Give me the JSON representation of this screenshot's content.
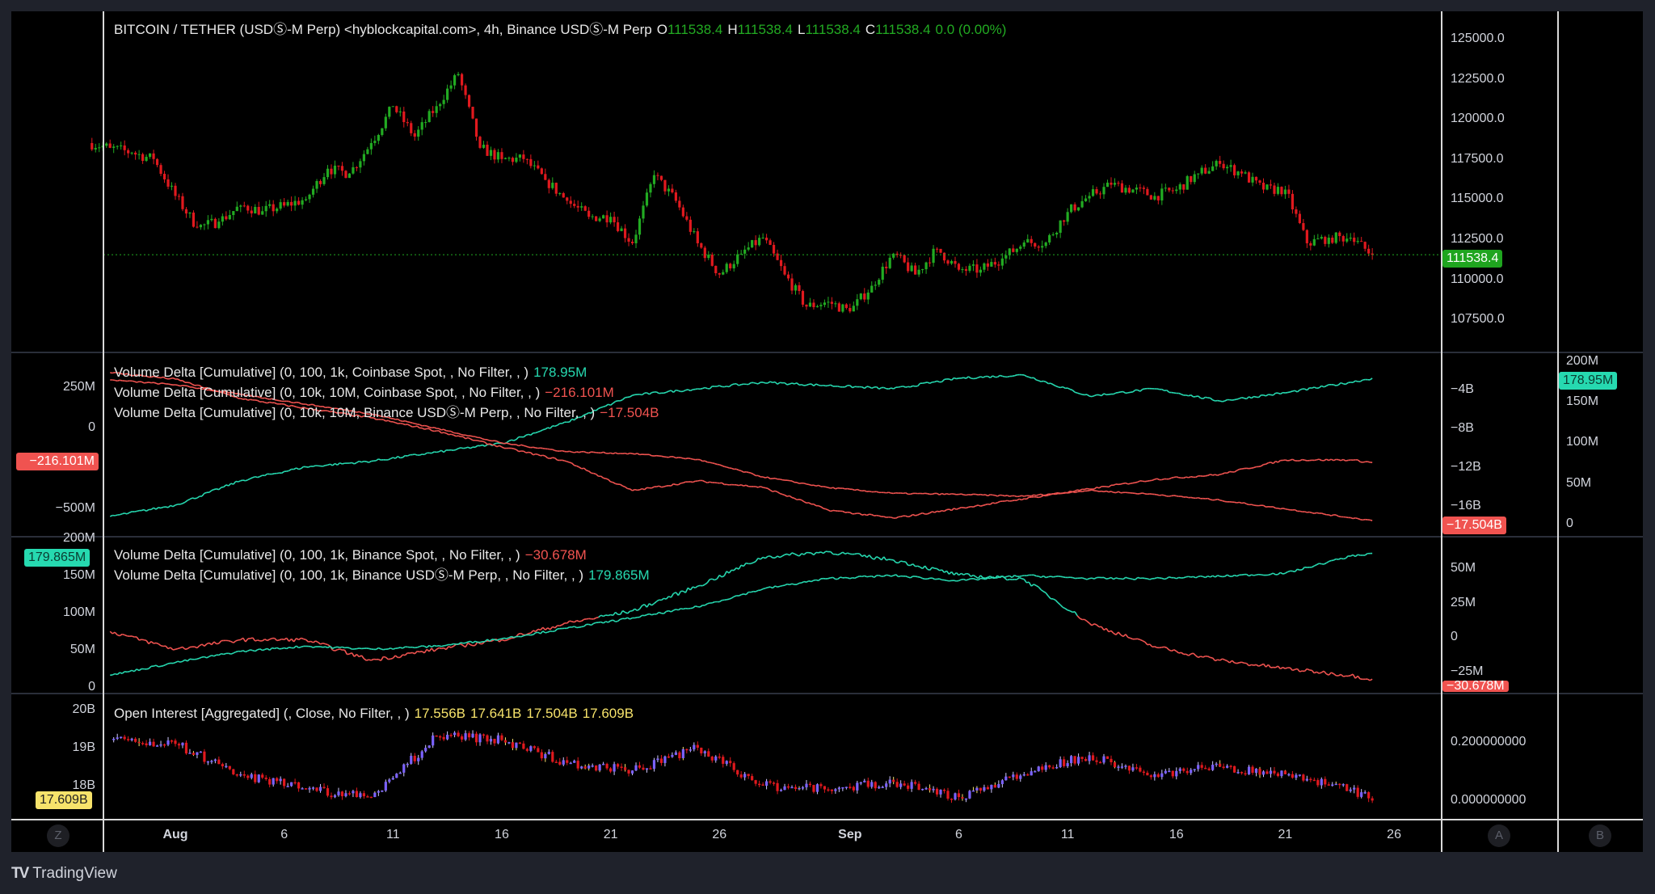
{
  "header": {
    "symbol": "BITCOIN / TETHER (USDⓈ-M Perp) <hyblockcapital.com>, 4h, Binance USDⓈ-M Perp",
    "o_label": "O",
    "o": "111538.4",
    "h_label": "H",
    "h": "111538.4",
    "l_label": "L",
    "l": "111538.4",
    "c_label": "C",
    "c": "111538.4",
    "change": "0.0 (0.00%)"
  },
  "colors": {
    "up": "#22ab22",
    "down": "#e0191e",
    "teal": "#26d9b0",
    "red": "#f05350",
    "yellow": "#f7e36b",
    "purple": "#7b61ff",
    "price_tag": "#1fa51f"
  },
  "panes": {
    "price": {
      "last_tag": "111538.4",
      "ticks": [
        "125000.0",
        "122500.0",
        "120000.0",
        "117500.0",
        "115000.0",
        "112500.0",
        "110000.0",
        "107500.0"
      ]
    },
    "vd1": {
      "legends": [
        {
          "text": "Volume Delta [Cumulative] (0, 100, 1k, Coinbase Spot, , No Filter, , )",
          "value": "178.95M",
          "color": "#26d9b0"
        },
        {
          "text": "Volume Delta [Cumulative] (0, 10k, 10M, Coinbase Spot, , No Filter, , )",
          "value": "−216.101M",
          "color": "#f05350"
        },
        {
          "text": "Volume Delta [Cumulative] (0, 10k, 10M, Binance USDⓈ-M Perp, , No Filter, , )",
          "value": "−17.504B",
          "color": "#f05350"
        }
      ],
      "left_ticks": [
        "250M",
        "0",
        "−500M"
      ],
      "a_ticks": [
        "−4B",
        "−8B",
        "−12B",
        "−16B"
      ],
      "b_ticks": [
        "200M",
        "150M",
        "100M",
        "50M",
        "0"
      ],
      "left_tag": "−216.101M",
      "a_tag": "−17.504B",
      "b_tag": "178.95M"
    },
    "vd2": {
      "legends": [
        {
          "text": "Volume Delta [Cumulative] (0, 100, 1k, Binance Spot, , No Filter, , )",
          "value": "−30.678M",
          "color": "#f05350"
        },
        {
          "text": "Volume Delta [Cumulative] (0, 100, 1k, Binance USDⓈ-M Perp, , No Filter, , )",
          "value": "179.865M",
          "color": "#26d9b0"
        }
      ],
      "left_ticks": [
        "200M",
        "150M",
        "100M",
        "50M",
        "0"
      ],
      "a_ticks": [
        "50M",
        "25M",
        "0",
        "−25M"
      ],
      "left_tag": "179.865M",
      "a_tag": "−30.678M"
    },
    "oi": {
      "legend": "Open Interest [Aggregated] (, Close, No Filter, , )",
      "values": [
        "17.556B",
        "17.641B",
        "17.504B",
        "17.609B"
      ],
      "left_ticks": [
        "20B",
        "19B",
        "18B"
      ],
      "a_ticks": [
        "0.200000000",
        "0.000000000"
      ],
      "left_tag": "17.609B"
    }
  },
  "time_axis": {
    "labels": [
      {
        "text": "Aug",
        "bold": true,
        "date": "Aug 1"
      },
      {
        "text": "6",
        "date": "Aug 6"
      },
      {
        "text": "11",
        "date": "Aug 11"
      },
      {
        "text": "16",
        "date": "Aug 16"
      },
      {
        "text": "21",
        "date": "Aug 21"
      },
      {
        "text": "26",
        "date": "Aug 26"
      },
      {
        "text": "Sep",
        "bold": true,
        "date": "Sep 1"
      },
      {
        "text": "6",
        "date": "Sep 6"
      },
      {
        "text": "11",
        "date": "Sep 11"
      },
      {
        "text": "16",
        "date": "Sep 16"
      },
      {
        "text": "21",
        "date": "Sep 21"
      },
      {
        "text": "26",
        "date": "Sep 26"
      }
    ],
    "scale_buttons": [
      "Z",
      "A",
      "B"
    ]
  },
  "footer": {
    "brand": "TradingView",
    "logo": "TV"
  },
  "chart_data": [
    {
      "type": "candlestick",
      "name": "BITCOIN / TETHER 4h",
      "ylim": [
        106000,
        126000
      ],
      "last": 111538.4,
      "dates": [
        "Jul 29",
        "Jul 30",
        "Jul 31",
        "Aug 1",
        "Aug 2",
        "Aug 3",
        "Aug 4",
        "Aug 5",
        "Aug 6",
        "Aug 7",
        "Aug 8",
        "Aug 9",
        "Aug 10",
        "Aug 11",
        "Aug 12",
        "Aug 13",
        "Aug 14",
        "Aug 15",
        "Aug 16",
        "Aug 17",
        "Aug 18",
        "Aug 19",
        "Aug 20",
        "Aug 21",
        "Aug 22",
        "Aug 23",
        "Aug 24",
        "Aug 25",
        "Aug 26",
        "Aug 27",
        "Aug 28",
        "Aug 29",
        "Aug 30",
        "Aug 31",
        "Sep 1",
        "Sep 2",
        "Sep 3",
        "Sep 4",
        "Sep 5",
        "Sep 6",
        "Sep 7",
        "Sep 8",
        "Sep 9",
        "Sep 10",
        "Sep 11",
        "Sep 12",
        "Sep 13",
        "Sep 14",
        "Sep 15",
        "Sep 16",
        "Sep 17",
        "Sep 18",
        "Sep 19",
        "Sep 20",
        "Sep 21",
        "Sep 22",
        "Sep 23",
        "Sep 24",
        "Sep 25"
      ],
      "close": [
        118200,
        117900,
        117500,
        115200,
        113250,
        113600,
        114600,
        114250,
        114600,
        115000,
        116900,
        116600,
        118500,
        120800,
        118900,
        120800,
        122800,
        118200,
        117500,
        117500,
        116200,
        114900,
        113900,
        113900,
        112250,
        116500,
        114900,
        112250,
        110300,
        111600,
        112600,
        110300,
        108300,
        108600,
        108000,
        109600,
        111600,
        110300,
        111900,
        110600,
        110600,
        111300,
        112300,
        112300,
        114200,
        115200,
        115900,
        115600,
        115200,
        115600,
        116600,
        117200,
        116600,
        115600,
        115600,
        112250,
        112600,
        112600,
        111538.4
      ]
    },
    {
      "type": "line",
      "dates": [
        "Jul 29",
        "Aug 1",
        "Aug 4",
        "Aug 7",
        "Aug 10",
        "Aug 13",
        "Aug 16",
        "Aug 19",
        "Aug 22",
        "Aug 25",
        "Aug 28",
        "Aug 31",
        "Sep 3",
        "Sep 6",
        "Sep 9",
        "Sep 12",
        "Sep 15",
        "Sep 18",
        "Sep 21",
        "Sep 24",
        "Sep 25"
      ],
      "series": [
        {
          "pane": "vd1",
          "axis": "B",
          "unit": "M",
          "color": "#26d9b0",
          "values": [
            9,
            23,
            53,
            70,
            77,
            88,
            99,
            125,
            158,
            166,
            174,
            170,
            166,
            179,
            183,
            157,
            166,
            151,
            161,
            174,
            178.95
          ]
        },
        {
          "pane": "vd1",
          "axis": "left",
          "unit": "M",
          "color": "#f05350",
          "values": [
            340,
            300,
            180,
            120,
            60,
            -20,
            -120,
            -210,
            -390,
            -330,
            -370,
            -510,
            -560,
            -500,
            -440,
            -380,
            -320,
            -290,
            -200,
            -200,
            -216.101
          ]
        },
        {
          "pane": "vd1",
          "axis": "A",
          "unit": "B",
          "color": "#f05350",
          "values": [
            -3.0,
            -3.5,
            -4.5,
            -5.5,
            -6.5,
            -8,
            -9.5,
            -10.4,
            -10.6,
            -11.2,
            -13,
            -14.1,
            -14.7,
            -14.8,
            -15,
            -14.4,
            -14.8,
            -15.4,
            -16.3,
            -17.2,
            -17.504
          ]
        },
        {
          "pane": "vd2",
          "axis": "A",
          "unit": "M",
          "color": "#f05350",
          "values": [
            4,
            -9,
            -2,
            -2,
            -17,
            -9,
            -2,
            10,
            19,
            37,
            58,
            62,
            56,
            45,
            42,
            10,
            -7,
            -17,
            -23,
            -28,
            -30.678
          ]
        },
        {
          "pane": "vd2",
          "axis": "left",
          "unit": "M",
          "color": "#26d9b0",
          "values": [
            16,
            33,
            48,
            55,
            51,
            55,
            65,
            79,
            93,
            108,
            132,
            146,
            150,
            143,
            150,
            146,
            146,
            149,
            153,
            176,
            179.865
          ]
        },
        {
          "pane": "oi",
          "axis": "left",
          "unit": "B",
          "color": "#e0191e",
          "values": [
            19.2,
            19.1,
            18.3,
            17.9,
            17.7,
            19.3,
            19.2,
            18.6,
            18.4,
            19.0,
            18.0,
            17.9,
            18.1,
            17.7,
            18.3,
            18.8,
            18.3,
            18.5,
            18.3,
            17.9,
            17.609
          ]
        }
      ]
    }
  ]
}
